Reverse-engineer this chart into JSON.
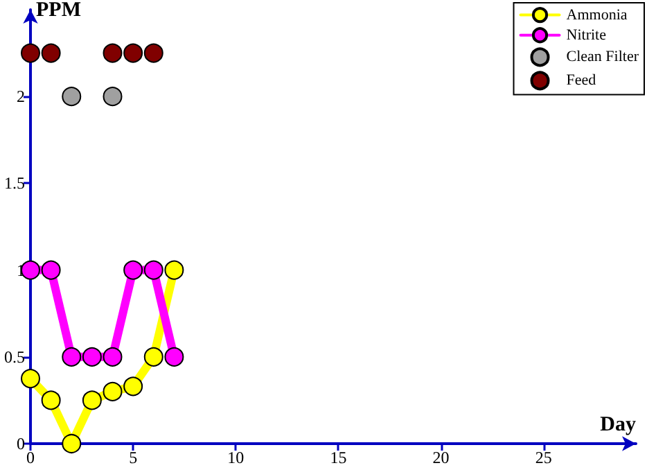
{
  "chart_data": {
    "type": "line",
    "xlabel": "Day",
    "ylabel": "PPM",
    "xlim": [
      0,
      29.5
    ],
    "ylim": [
      0,
      2.5
    ],
    "xticks": [
      0,
      5,
      10,
      15,
      20,
      25
    ],
    "yticks": [
      0,
      0.5,
      1,
      1.5,
      2
    ],
    "grid": false,
    "legend": "top right",
    "marker": "circle",
    "line_style": "solid",
    "series": [
      {
        "name": "Ammonia",
        "color": "#ffff00",
        "x": [
          0,
          1,
          2,
          3,
          4,
          5,
          6,
          7
        ],
        "values": [
          0.375,
          0.25,
          0,
          0.25,
          0.3,
          0.33,
          0.5,
          1
        ]
      },
      {
        "name": "Nitrite",
        "color": "#ff00ff",
        "x": [
          0,
          1,
          2,
          3,
          4,
          5,
          6,
          7
        ],
        "values": [
          1,
          1,
          0.5,
          0.5,
          0.5,
          1,
          1,
          0.5
        ]
      },
      {
        "name": "Clean Filter",
        "type": "scatter",
        "color": "#a0a0a0",
        "x": [
          2,
          4
        ],
        "values": [
          2,
          2
        ]
      },
      {
        "name": "Feed",
        "type": "scatter",
        "color": "#800000",
        "x": [
          0,
          1,
          4,
          5,
          6
        ],
        "values": [
          2.25,
          2.25,
          2.25,
          2.25,
          2.25
        ]
      }
    ]
  }
}
